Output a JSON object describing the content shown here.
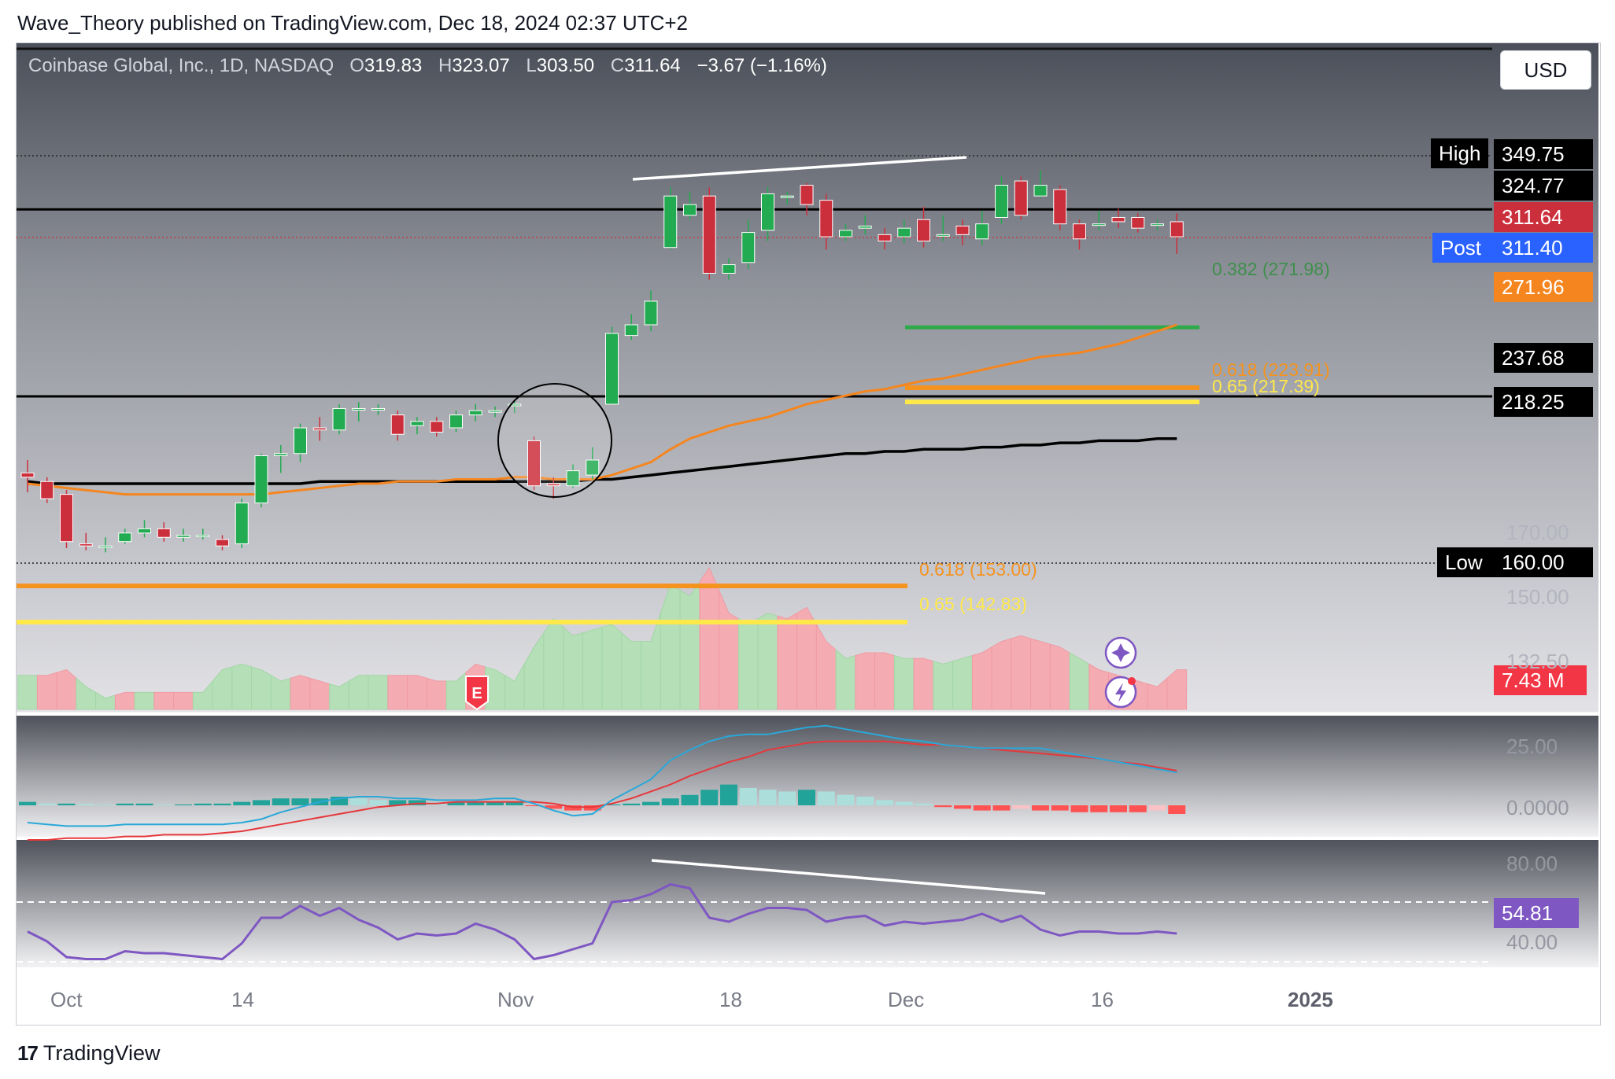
{
  "publisher_line": "Wave_Theory published on TradingView.com, Dec 18, 2024 02:37 UTC+2",
  "currency_button": "USD",
  "legend": {
    "symbol": "Coinbase Global, Inc., 1D, NASDAQ",
    "open_label": "O",
    "open": "319.83",
    "high_label": "H",
    "high": "323.07",
    "low_label": "L",
    "low": "303.50",
    "close_label": "C",
    "close": "311.64",
    "change": "−3.67 (−1.16%)"
  },
  "price_tags": {
    "high_label": "High",
    "high_value": "349.75",
    "level_324": "324.77",
    "last_price": "311.64",
    "post_label": "Post",
    "post_value": "311.40",
    "ema": "271.96",
    "level_237": "237.68",
    "sma": "218.25",
    "low_label": "Low",
    "low_value": "160.00",
    "volume": "7.43 M",
    "macd_top": "25.00",
    "macd_zero": "0.0000",
    "rsi_value": "54.81",
    "rsi_80": "80.00",
    "rsi_40": "40.00"
  },
  "price_axis_labels": [
    "170.00",
    "150.00",
    "132.50"
  ],
  "fib_labels": {
    "f382_up": "0.382 (271.98)",
    "f618_up": "0.618 (223.91)",
    "f65_up": "0.65 (217.39)",
    "f618_low": "0.618 (153.00)",
    "f65_low": "0.65 (142.83)"
  },
  "earnings_marker": "E",
  "date_labels": [
    "Oct",
    "14",
    "Nov",
    "18",
    "Dec",
    "16",
    "2025"
  ],
  "brand": "TradingView",
  "colors": {
    "up": "#22ab51",
    "down": "#cc2f3c",
    "ema": "#f5861f",
    "sma": "#000000",
    "fib_green": "#2eaa4a",
    "fib_orange": "#f5931f",
    "fib_yellow": "#ffe84a",
    "rsi": "#7e57c2",
    "macd": "#2aa8d8",
    "signal": "#e5383b"
  },
  "chart_data": {
    "type": "candlestick",
    "title": "Coinbase Global, Inc., 1D, NASDAQ",
    "ylim": [
      125,
      370
    ],
    "candles": [
      [
        202,
        200,
        208,
        193
      ],
      [
        198,
        190,
        200,
        188
      ],
      [
        192,
        170,
        194,
        167
      ],
      [
        169,
        168,
        174,
        166
      ],
      [
        168,
        168,
        172,
        165
      ],
      [
        170,
        174,
        176,
        169
      ],
      [
        174,
        176,
        180,
        172
      ],
      [
        176,
        172,
        179,
        170
      ],
      [
        172,
        173,
        176,
        170
      ],
      [
        173,
        173,
        176,
        171
      ],
      [
        171,
        168,
        173,
        166
      ],
      [
        169,
        188,
        190,
        167
      ],
      [
        188,
        210,
        211,
        186
      ],
      [
        210,
        211,
        215,
        202
      ],
      [
        211,
        223,
        225,
        207
      ],
      [
        223,
        222,
        228,
        217
      ],
      [
        222,
        232,
        234,
        220
      ],
      [
        232,
        232,
        235,
        226
      ],
      [
        232,
        232,
        234,
        229
      ],
      [
        229,
        220,
        231,
        217
      ],
      [
        224,
        226,
        228,
        220
      ],
      [
        226,
        221,
        228,
        219
      ],
      [
        223,
        229,
        231,
        221
      ],
      [
        229,
        231,
        234,
        226
      ],
      [
        231,
        231,
        233,
        228
      ],
      [
        234,
        234,
        236,
        230
      ],
      [
        217,
        196,
        219,
        194
      ],
      [
        197,
        196,
        200,
        190
      ],
      [
        196,
        203,
        206,
        195
      ],
      [
        201,
        208,
        214,
        199
      ],
      [
        234,
        267,
        270,
        234
      ],
      [
        266,
        271,
        276,
        264
      ],
      [
        271,
        282,
        287,
        268
      ],
      [
        307,
        331,
        335,
        306
      ],
      [
        322,
        327,
        333,
        320
      ],
      [
        331,
        295,
        335,
        292
      ],
      [
        295,
        299,
        302,
        292
      ],
      [
        300,
        314,
        320,
        297
      ],
      [
        315,
        332,
        335,
        310
      ],
      [
        331,
        331,
        333,
        327
      ],
      [
        336,
        327,
        337,
        322
      ],
      [
        329,
        312,
        332,
        306
      ],
      [
        312,
        315,
        318,
        310
      ],
      [
        316,
        317,
        322,
        313
      ],
      [
        313,
        310,
        316,
        306
      ],
      [
        312,
        316,
        320,
        309
      ],
      [
        320,
        310,
        326,
        307
      ],
      [
        313,
        313,
        322,
        310
      ],
      [
        317,
        313,
        320,
        308
      ],
      [
        311,
        318,
        324,
        308
      ],
      [
        321,
        336,
        340,
        318
      ],
      [
        338,
        322,
        340,
        320
      ],
      [
        331,
        336,
        343,
        330
      ],
      [
        334,
        318,
        336,
        315
      ],
      [
        318,
        311,
        320,
        306
      ],
      [
        318,
        318,
        324,
        315
      ],
      [
        321,
        319,
        325,
        316
      ],
      [
        321,
        316,
        323,
        314
      ],
      [
        318,
        318,
        320,
        315
      ],
      [
        319,
        312,
        323,
        304
      ]
    ],
    "ema_series": [
      197,
      196,
      195,
      194,
      193,
      192,
      192,
      192,
      192,
      192,
      192,
      192,
      192,
      193,
      194,
      195,
      196,
      197,
      197,
      198,
      198,
      198,
      199,
      199,
      199,
      200,
      200,
      199,
      199,
      199,
      201,
      204,
      207,
      213,
      218,
      221,
      224,
      226,
      228,
      231,
      234,
      236,
      238,
      240,
      241,
      243,
      245,
      246,
      248,
      250,
      252,
      254,
      256,
      257,
      258,
      260,
      262,
      265,
      268,
      271
    ],
    "sma_series": [
      198,
      197,
      197,
      197,
      197,
      197,
      197,
      197,
      197,
      197,
      197,
      197,
      197,
      197,
      197,
      198,
      198,
      198,
      198,
      198,
      198,
      198,
      198,
      198,
      198,
      198,
      198,
      198,
      198,
      199,
      199,
      200,
      201,
      202,
      203,
      204,
      205,
      206,
      207,
      208,
      209,
      210,
      211,
      211,
      212,
      212,
      213,
      213,
      213,
      214,
      214,
      215,
      215,
      216,
      216,
      217,
      217,
      217,
      218,
      218
    ],
    "volume": [
      {
        "up": true,
        "v": 6
      },
      {
        "up": false,
        "v": 6
      },
      {
        "up": false,
        "v": 7
      },
      {
        "up": true,
        "v": 4
      },
      {
        "up": true,
        "v": 2
      },
      {
        "up": false,
        "v": 3
      },
      {
        "up": true,
        "v": 3
      },
      {
        "up": false,
        "v": 3
      },
      {
        "up": false,
        "v": 3
      },
      {
        "up": true,
        "v": 3
      },
      {
        "up": true,
        "v": 7
      },
      {
        "up": true,
        "v": 8
      },
      {
        "up": true,
        "v": 7
      },
      {
        "up": true,
        "v": 5
      },
      {
        "up": false,
        "v": 6
      },
      {
        "up": false,
        "v": 5
      },
      {
        "up": true,
        "v": 4
      },
      {
        "up": true,
        "v": 6
      },
      {
        "up": true,
        "v": 6
      },
      {
        "up": false,
        "v": 6
      },
      {
        "up": false,
        "v": 6
      },
      {
        "up": false,
        "v": 5
      },
      {
        "up": true,
        "v": 5
      },
      {
        "up": false,
        "v": 8
      },
      {
        "up": true,
        "v": 7
      },
      {
        "up": true,
        "v": 5
      },
      {
        "up": true,
        "v": 11
      },
      {
        "up": true,
        "v": 16
      },
      {
        "up": true,
        "v": 13
      },
      {
        "up": true,
        "v": 14
      },
      {
        "up": true,
        "v": 15
      },
      {
        "up": true,
        "v": 12
      },
      {
        "up": true,
        "v": 12
      },
      {
        "up": true,
        "v": 22
      },
      {
        "up": true,
        "v": 20
      },
      {
        "up": false,
        "v": 25
      },
      {
        "up": false,
        "v": 17
      },
      {
        "up": true,
        "v": 15
      },
      {
        "up": true,
        "v": 17
      },
      {
        "up": false,
        "v": 16
      },
      {
        "up": false,
        "v": 18
      },
      {
        "up": false,
        "v": 12
      },
      {
        "up": true,
        "v": 9
      },
      {
        "up": false,
        "v": 10
      },
      {
        "up": false,
        "v": 10
      },
      {
        "up": true,
        "v": 9
      },
      {
        "up": false,
        "v": 9
      },
      {
        "up": true,
        "v": 8
      },
      {
        "up": true,
        "v": 9
      },
      {
        "up": false,
        "v": 10
      },
      {
        "up": false,
        "v": 12
      },
      {
        "up": false,
        "v": 13
      },
      {
        "up": false,
        "v": 12
      },
      {
        "up": false,
        "v": 11
      },
      {
        "up": true,
        "v": 9
      },
      {
        "up": false,
        "v": 7
      },
      {
        "up": false,
        "v": 6
      },
      {
        "up": false,
        "v": 5
      },
      {
        "up": false,
        "v": 4
      },
      {
        "up": false,
        "v": 7
      }
    ],
    "macd_hist": [
      2,
      1,
      1,
      0.8,
      0.5,
      1,
      1,
      0.5,
      0.5,
      1,
      1,
      2,
      3,
      4,
      4,
      4,
      5,
      4,
      3,
      3,
      3,
      2,
      2,
      2,
      2,
      2,
      -0.5,
      -2,
      -3,
      -3,
      0.5,
      1,
      2,
      4,
      6,
      9,
      12,
      10,
      9,
      8,
      9,
      8,
      6,
      5,
      3,
      2,
      1,
      -1,
      -2,
      -3,
      -3,
      -2,
      -3,
      -3,
      -4,
      -4,
      -4,
      -4,
      -3,
      -5
    ],
    "macd_line": [
      -10,
      -11,
      -12,
      -12,
      -12,
      -11,
      -11,
      -11,
      -11,
      -11,
      -11,
      -10,
      -8,
      -4,
      -1,
      2,
      4,
      5,
      5,
      4,
      4,
      3,
      3,
      3,
      4,
      4,
      1,
      -3,
      -6,
      -5,
      3,
      9,
      15,
      26,
      32,
      37,
      40,
      41,
      41,
      43,
      45,
      46,
      44,
      42,
      40,
      38,
      37,
      35,
      34,
      33,
      33,
      33,
      33,
      31,
      29,
      27,
      25,
      23,
      21,
      19
    ],
    "signal_line": [
      -20,
      -20,
      -19,
      -19,
      -19,
      -18,
      -18,
      -17,
      -17,
      -17,
      -16,
      -15,
      -13,
      -11,
      -9,
      -7,
      -5,
      -3,
      -1,
      0,
      1,
      1,
      2,
      2,
      2,
      2,
      2,
      1,
      -1,
      -1,
      1,
      4,
      8,
      12,
      17,
      21,
      25,
      28,
      32,
      34,
      36,
      37,
      37,
      37,
      37,
      36,
      35,
      35,
      34,
      33,
      32,
      31,
      30,
      29,
      28,
      27,
      25,
      24,
      22,
      20
    ],
    "rsi": [
      55,
      50,
      42,
      41,
      41,
      45,
      44,
      44,
      43,
      42,
      41,
      49,
      62,
      62,
      68,
      63,
      67,
      61,
      57,
      51,
      54,
      53,
      54,
      59,
      56,
      51,
      41,
      43,
      46,
      49,
      70,
      71,
      74,
      79,
      77,
      62,
      60,
      64,
      67,
      67,
      66,
      60,
      62,
      63,
      58,
      60,
      59,
      60,
      61,
      64,
      60,
      63,
      56,
      53,
      55,
      55,
      54,
      54,
      55,
      54
    ],
    "axis": {
      "ylim": [
        125,
        370
      ],
      "volume_max": 25,
      "macd_range": [
        -25,
        50
      ],
      "rsi_range": [
        30,
        85
      ]
    }
  }
}
